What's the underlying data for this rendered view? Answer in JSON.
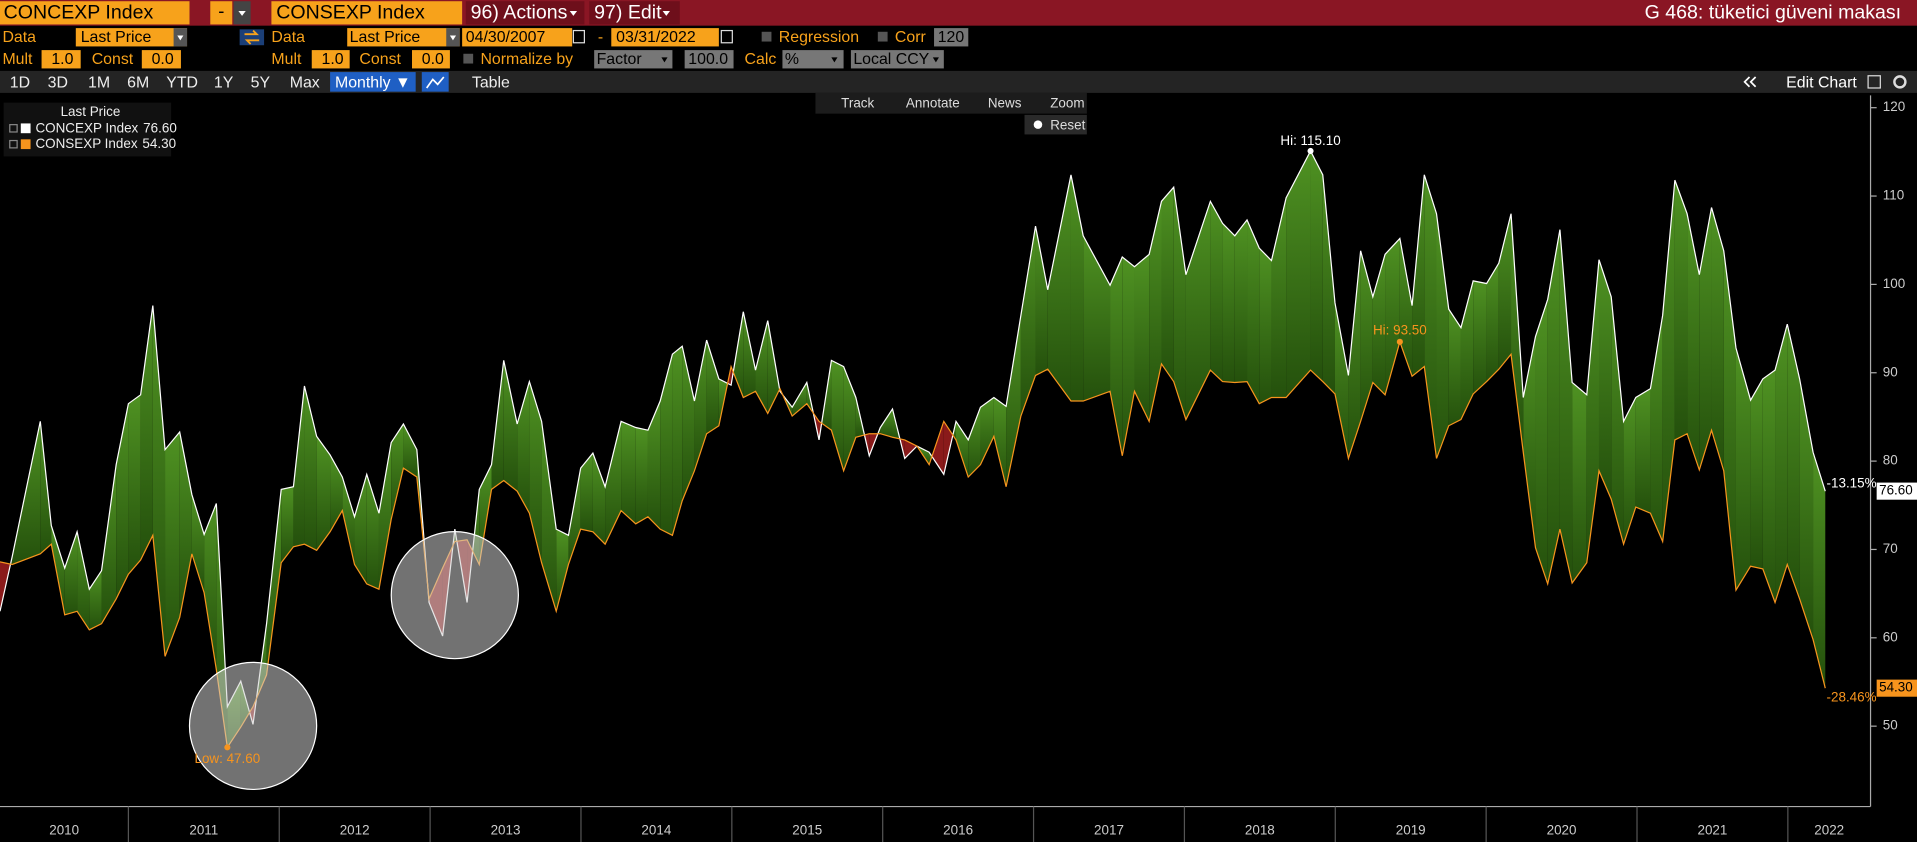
{
  "header": {
    "security_1": "CONCEXP Index",
    "separator": "-",
    "security_2": "CONSEXP Index",
    "actions": "96) Actions",
    "edit": "97) Edit",
    "page_title": "G 468: tüketici güveni makası"
  },
  "settings_row_1": {
    "data_label_1": "Data",
    "field_1": "Last Price",
    "data_label_2": "Data",
    "field_2": "Last Price",
    "start_date": "04/30/2007",
    "date_separator": "-",
    "end_date": "03/31/2022",
    "regression": "Regression",
    "corr": "Corr",
    "corr_window": "120"
  },
  "settings_row_2": {
    "mult_label_1": "Mult",
    "mult_1": "1.0",
    "const_label_1": "Const",
    "const_1": "0.0",
    "mult_label_2": "Mult",
    "mult_2": "1.0",
    "const_label_2": "Const",
    "const_2": "0.0",
    "normalize": "Normalize by",
    "normalize_mode": "Factor",
    "normalize_value": "100.0",
    "calc": "Calc",
    "calc_mode": "%",
    "currency": "Local CCY"
  },
  "range_bar": {
    "periods": [
      "1D",
      "3D",
      "1M",
      "6M",
      "YTD",
      "1Y",
      "5Y",
      "Max"
    ],
    "frequency": "Monthly ▼",
    "table": "Table",
    "edit_chart": "Edit Chart"
  },
  "chart_toolbar": {
    "track": "Track",
    "annotate": "Annotate",
    "news": "News",
    "zoom": "Zoom",
    "reset": "Reset"
  },
  "chart_data": {
    "type": "line",
    "legend_title": "Last Price",
    "x": [
      2010.149,
      2010.23,
      2010.416,
      2010.489,
      2010.578,
      2010.66,
      2010.741,
      2010.822,
      2010.919,
      2011.0,
      2011.081,
      2011.162,
      2011.243,
      2011.34,
      2011.421,
      2011.502,
      2011.583,
      2011.656,
      2011.745,
      2011.826,
      2011.916,
      2012.013,
      2012.094,
      2012.167,
      2012.248,
      2012.337,
      2012.418,
      2012.499,
      2012.58,
      2012.661,
      2012.742,
      2012.823,
      2012.912,
      2012.993,
      2013.083,
      2013.164,
      2013.245,
      2013.326,
      2013.407,
      2013.488,
      2013.577,
      2013.658,
      2013.739,
      2013.836,
      2013.917,
      2013.998,
      2014.079,
      2014.16,
      2014.266,
      2014.363,
      2014.444,
      2014.525,
      2014.606,
      2014.671,
      2014.752,
      2014.833,
      2014.914,
      2014.995,
      2015.076,
      2015.157,
      2015.238,
      2015.319,
      2015.4,
      2015.497,
      2015.578,
      2015.66,
      2015.741,
      2015.822,
      2015.911,
      2015.984,
      2016.065,
      2016.146,
      2016.227,
      2016.308,
      2016.405,
      2016.486,
      2016.567,
      2016.648,
      2016.737,
      2016.818,
      2016.916,
      2017.013,
      2017.094,
      2017.248,
      2017.329,
      2017.507,
      2017.588,
      2017.669,
      2017.766,
      2017.848,
      2017.929,
      2018.01,
      2018.172,
      2018.253,
      2018.334,
      2018.415,
      2018.496,
      2018.577,
      2018.674,
      2018.836,
      2018.917,
      2018.998,
      2019.087,
      2019.168,
      2019.249,
      2019.33,
      2019.428,
      2019.509,
      2019.59,
      2019.671,
      2019.752,
      2019.833,
      2019.914,
      2020.003,
      2020.084,
      2020.165,
      2020.246,
      2020.327,
      2020.408,
      2020.489,
      2020.57,
      2020.667,
      2020.748,
      2020.829,
      2020.911,
      2020.992,
      2021.089,
      2021.17,
      2021.251,
      2021.332,
      2021.413,
      2021.494,
      2021.575,
      2021.656,
      2021.753,
      2021.834,
      2021.915,
      2021.996,
      2022.078,
      2022.167,
      2022.248
    ],
    "series": [
      {
        "name": "CONCEXP Index",
        "color": "#ffffff",
        "last_label": "76.60",
        "change_label": "-13.15%",
        "values": [
          63.0,
          69.2,
          84.5,
          72.7,
          67.9,
          72.0,
          65.5,
          67.6,
          79.6,
          86.5,
          87.5,
          97.6,
          81.3,
          83.3,
          76.2,
          71.7,
          75.2,
          52.2,
          55.1,
          50.2,
          61.6,
          76.8,
          77.1,
          88.5,
          82.8,
          80.7,
          78.2,
          73.7,
          78.5,
          74.1,
          82.1,
          84.2,
          81.3,
          64.0,
          60.2,
          72.3,
          64.0,
          76.8,
          79.6,
          91.4,
          84.2,
          89.0,
          84.5,
          72.3,
          71.6,
          79.2,
          80.9,
          77.1,
          84.5,
          83.8,
          83.5,
          86.8,
          92.1,
          93.0,
          86.8,
          93.7,
          89.3,
          88.6,
          96.9,
          90.3,
          95.9,
          87.9,
          86.1,
          88.9,
          82.4,
          91.4,
          90.7,
          87.2,
          80.6,
          83.8,
          85.9,
          80.3,
          81.7,
          81.0,
          78.5,
          84.5,
          82.4,
          86.1,
          87.2,
          86.2,
          96.5,
          106.6,
          99.4,
          112.4,
          105.5,
          99.9,
          103.1,
          102.0,
          103.4,
          109.4,
          111.0,
          101.1,
          109.4,
          106.9,
          105.5,
          107.3,
          104.1,
          102.7,
          109.8,
          115.1,
          112.4,
          97.9,
          89.7,
          103.8,
          98.6,
          103.4,
          105.2,
          97.6,
          112.4,
          108.0,
          97.2,
          95.1,
          100.4,
          100.1,
          102.4,
          108.0,
          87.2,
          94.1,
          98.3,
          106.2,
          88.9,
          87.5,
          102.8,
          98.6,
          84.5,
          87.2,
          88.2,
          96.5,
          111.8,
          108.0,
          101.1,
          108.7,
          103.8,
          92.8,
          86.9,
          89.3,
          90.3,
          95.5,
          89.3,
          81.0,
          76.6
        ]
      },
      {
        "name": "CONSEXP Index",
        "color": "#f7941d",
        "last_label": "54.30",
        "change_label": "-28.46%",
        "values": [
          68.6,
          68.3,
          69.5,
          70.6,
          62.6,
          63.0,
          60.9,
          61.6,
          64.4,
          67.2,
          68.8,
          71.6,
          57.9,
          62.3,
          69.5,
          65.1,
          56.4,
          47.6,
          49.9,
          52.2,
          55.8,
          68.5,
          70.3,
          70.6,
          69.9,
          72.0,
          74.4,
          68.3,
          66.1,
          65.5,
          73.4,
          79.2,
          78.2,
          64.4,
          67.9,
          70.9,
          71.1,
          68.3,
          76.8,
          77.8,
          76.6,
          74.1,
          68.5,
          63.0,
          68.3,
          72.3,
          72.0,
          70.6,
          74.4,
          72.9,
          73.7,
          72.3,
          71.6,
          75.5,
          78.9,
          83.1,
          84.0,
          90.7,
          87.2,
          87.9,
          85.4,
          88.2,
          85.1,
          86.5,
          84.5,
          83.5,
          78.9,
          82.7,
          83.1,
          83.1,
          82.7,
          82.4,
          81.7,
          79.6,
          84.5,
          82.4,
          78.2,
          79.6,
          82.8,
          77.1,
          85.1,
          89.7,
          90.4,
          86.8,
          86.8,
          87.9,
          80.6,
          87.9,
          84.5,
          91.0,
          89.0,
          84.7,
          90.3,
          89.0,
          88.9,
          89.0,
          86.5,
          87.2,
          87.2,
          90.3,
          89.0,
          87.6,
          80.3,
          84.5,
          88.9,
          87.5,
          93.5,
          89.6,
          90.7,
          80.3,
          84.0,
          84.7,
          87.6,
          89.0,
          90.4,
          92.1,
          81.0,
          70.2,
          66.1,
          72.3,
          66.2,
          68.5,
          78.9,
          75.7,
          70.6,
          74.8,
          74.1,
          70.9,
          82.4,
          83.1,
          79.0,
          83.5,
          78.9,
          65.4,
          68.1,
          67.8,
          64.0,
          68.3,
          64.4,
          59.8,
          54.3
        ]
      }
    ],
    "annotations": {
      "series_1_high": "Hi: 115.10",
      "series_2_high": "Hi: 93.50",
      "series_2_low": "Low: 47.60"
    },
    "xlim": [
      2010.149,
      2022.548
    ],
    "xticks": [
      2010,
      2011,
      2012,
      2013,
      2014,
      2015,
      2016,
      2017,
      2018,
      2019,
      2020,
      2021,
      2022
    ],
    "ylim": [
      40.9,
      121.4
    ],
    "yticks": [
      50,
      60,
      70,
      80,
      90,
      100,
      110,
      120
    ],
    "grid": false,
    "legend": "upper left"
  }
}
